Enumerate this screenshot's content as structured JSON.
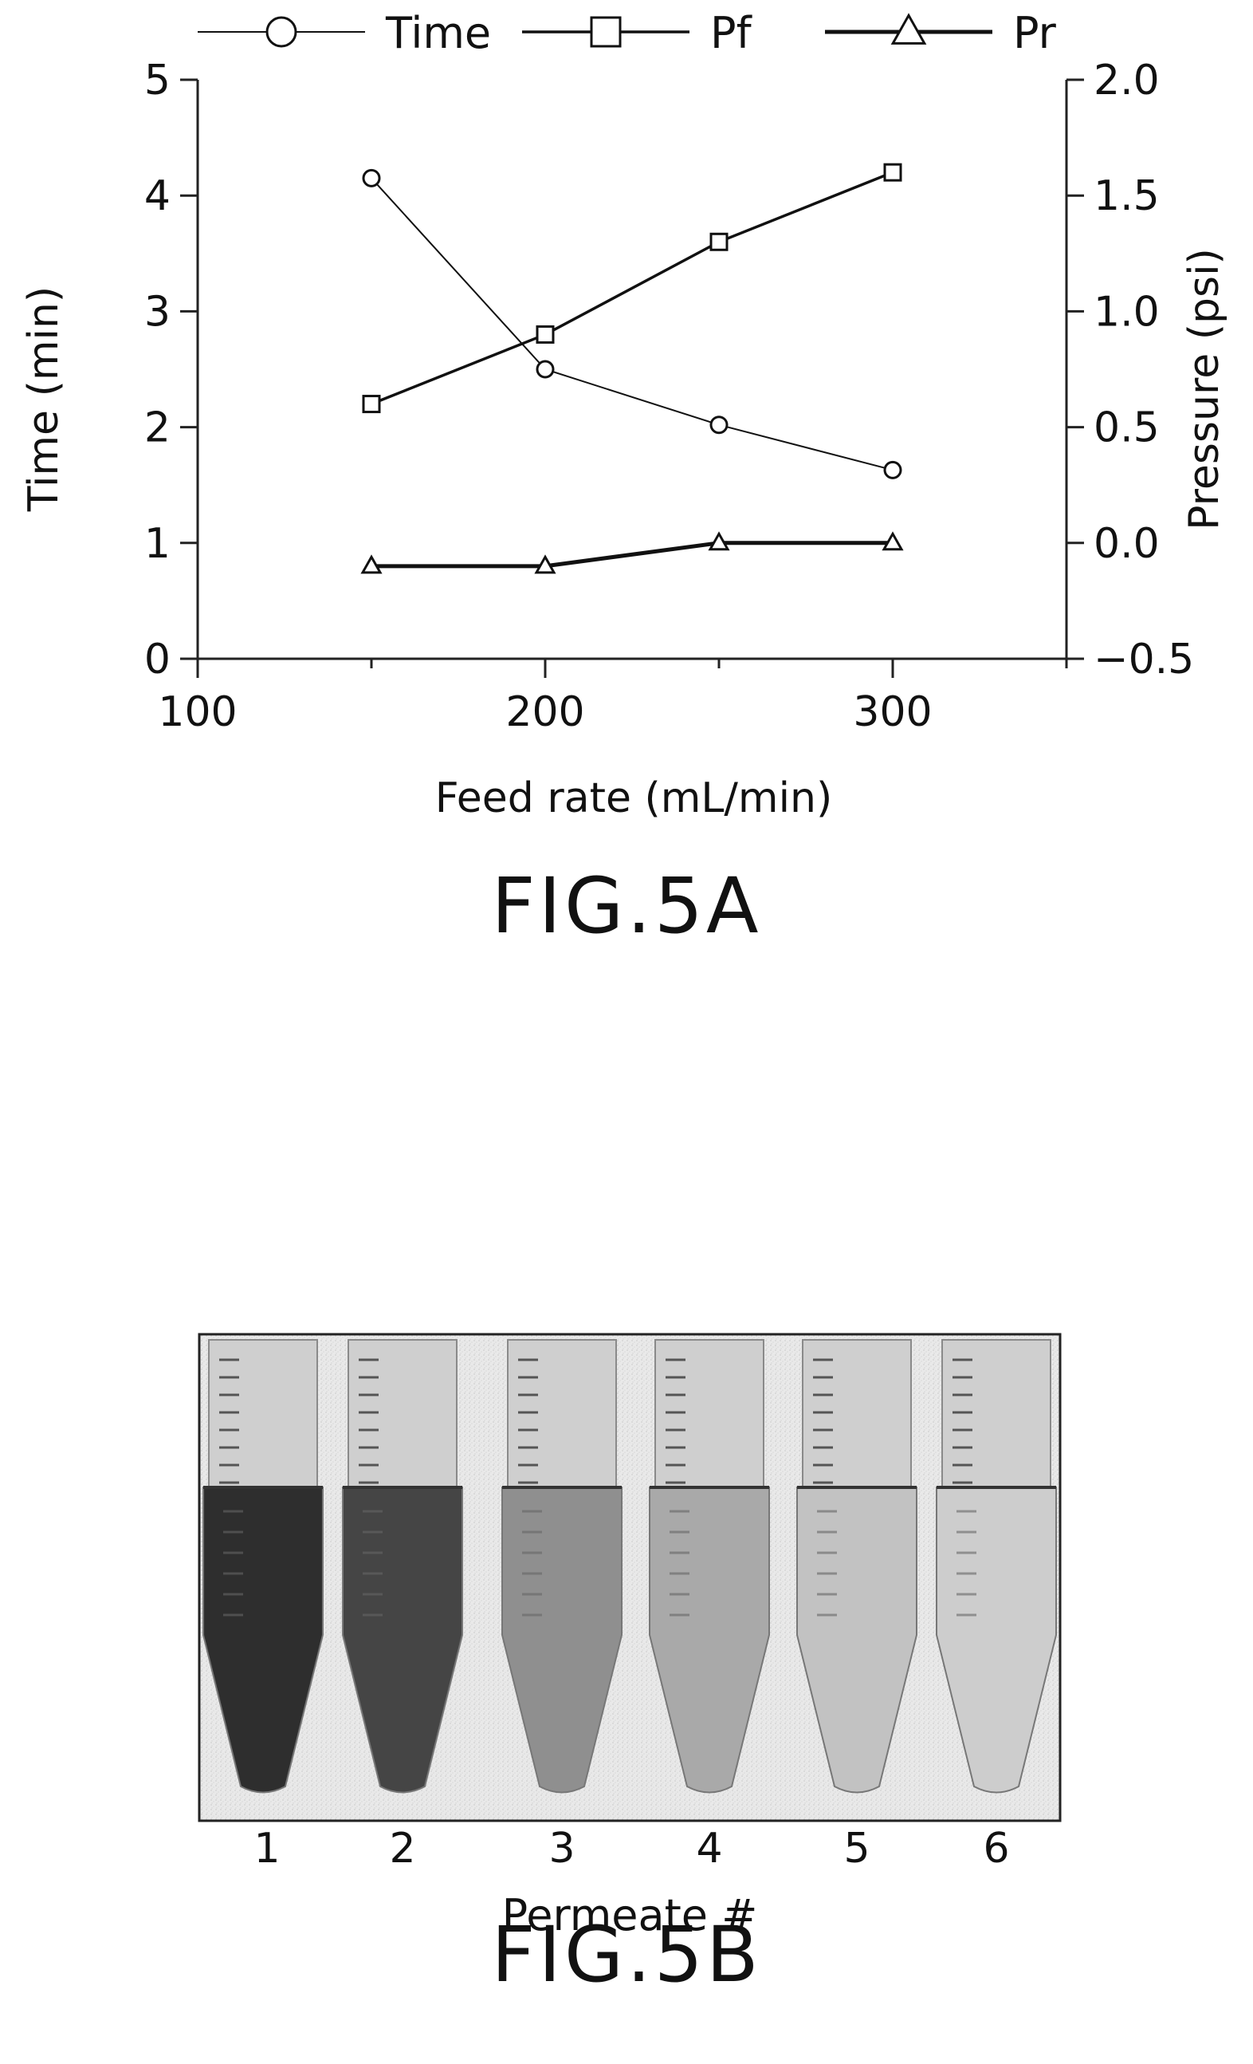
{
  "chart_data": {
    "type": "line",
    "x": [
      150,
      200,
      250,
      300
    ],
    "xlabel": "Feed rate (mL/min)",
    "xticks": [
      "100",
      "200",
      "300"
    ],
    "xlim": [
      100,
      350
    ],
    "ylabel_left": "Time (min)",
    "yticks_left": [
      "0",
      "1",
      "2",
      "3",
      "4",
      "5"
    ],
    "ylim_left": [
      0,
      5
    ],
    "ylabel_right": "Pressure (psi)",
    "yticks_right": [
      "−0.5",
      "0.0",
      "0.5",
      "1.0",
      "1.5",
      "2.0"
    ],
    "ylim_right": [
      -0.5,
      2.0
    ],
    "legend_position": "top",
    "series": [
      {
        "name": "Time",
        "axis": "left",
        "marker": "circle",
        "line": "thin",
        "values": [
          4.15,
          2.5,
          2.02,
          1.63
        ]
      },
      {
        "name": "Pf",
        "axis": "right",
        "marker": "square",
        "line": "medium",
        "values": [
          0.6,
          0.9,
          1.3,
          1.6
        ]
      },
      {
        "name": "Pr",
        "axis": "right",
        "marker": "triangle",
        "line": "thick",
        "values": [
          -0.1,
          -0.1,
          0.0,
          0.0
        ]
      }
    ]
  },
  "figure_a_label": "FIG.5A",
  "photo": {
    "xlabel": "Permeate #",
    "tubes": [
      {
        "label": "1",
        "shade": "#2e2e2e"
      },
      {
        "label": "2",
        "shade": "#454545"
      },
      {
        "label": "3",
        "shade": "#8f8f8f"
      },
      {
        "label": "4",
        "shade": "#a9a9a9"
      },
      {
        "label": "5",
        "shade": "#c2c2c2"
      },
      {
        "label": "6",
        "shade": "#cdcdcd"
      }
    ]
  },
  "figure_b_label": "FIG.5B"
}
